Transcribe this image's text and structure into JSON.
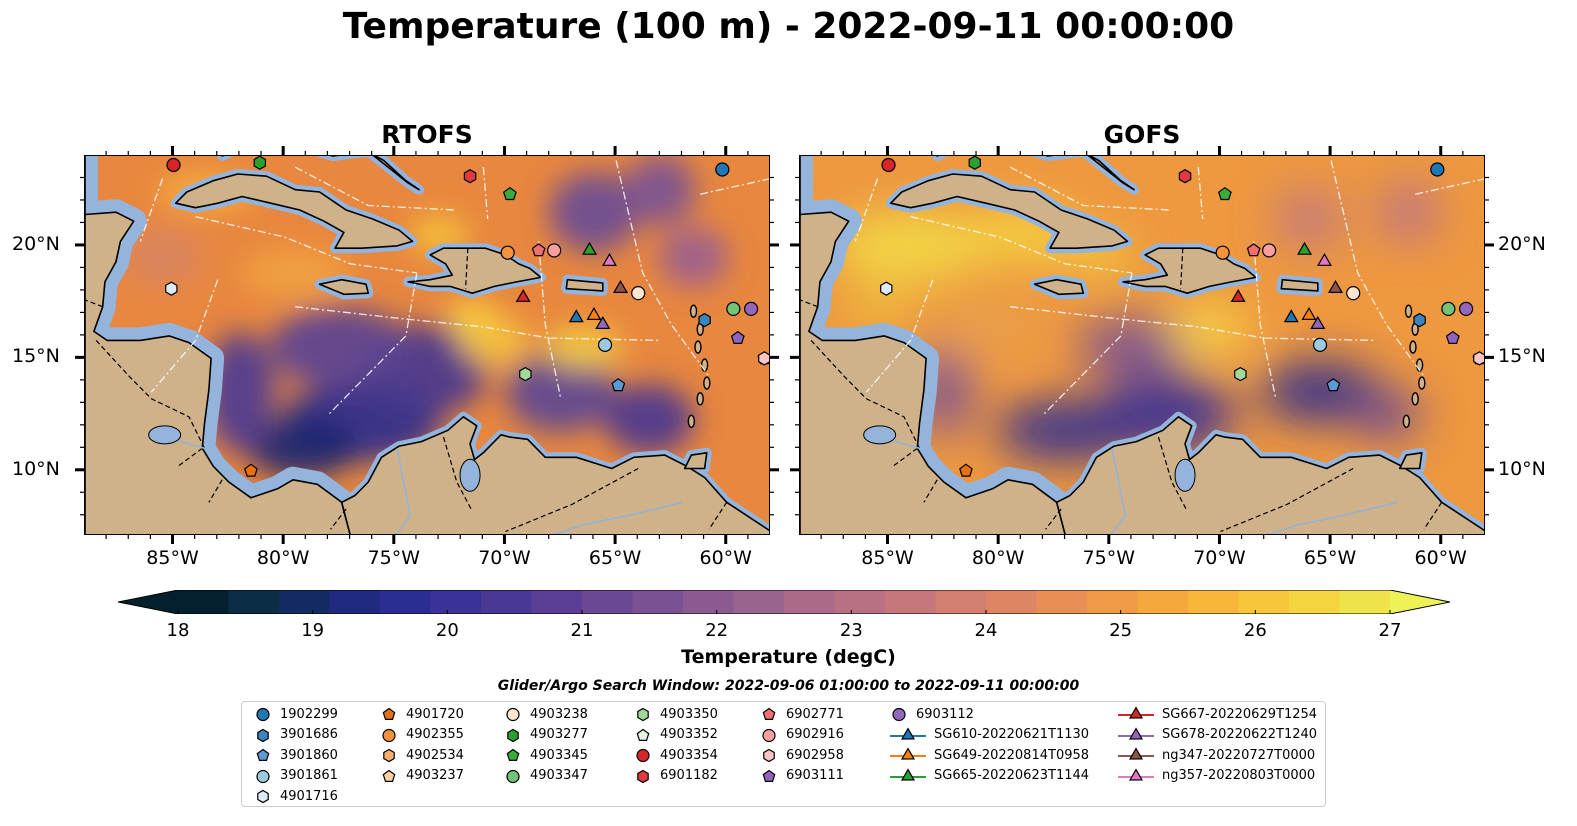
{
  "title": "Temperature (100 m) - 2022-09-11 00:00:00",
  "panels": [
    {
      "title": "RTOFS",
      "style": "rtofs"
    },
    {
      "title": "GOFS",
      "style": "gofs"
    }
  ],
  "axes": {
    "lon_ticks": [
      "85°W",
      "80°W",
      "75°W",
      "70°W",
      "65°W",
      "60°W"
    ],
    "lat_ticks": [
      "20°N",
      "15°N",
      "10°N"
    ]
  },
  "colorbar": {
    "label": "Temperature (degC)",
    "ticks": [
      "18",
      "19",
      "20",
      "21",
      "22",
      "23",
      "24",
      "25",
      "26",
      "27"
    ],
    "range": [
      18,
      27
    ],
    "colors": [
      "#04202e",
      "#0b2d45",
      "#142a62",
      "#1f2a80",
      "#2c2d93",
      "#3a3297",
      "#4a3896",
      "#5a3f95",
      "#6a4894",
      "#7a5192",
      "#8a5a91",
      "#9a628e",
      "#aa6a88",
      "#b87082",
      "#c6777b",
      "#d27e70",
      "#de8664",
      "#e88f55",
      "#f09a48",
      "#f5a83d",
      "#f7b738",
      "#f7c63a",
      "#f4d53f",
      "#eee44a"
    ],
    "extend": "both"
  },
  "search_window": "Glider/Argo Search Window: 2022-09-06 01:00:00 to 2022-09-11 00:00:00",
  "legend": {
    "columns": [
      [
        {
          "label": "1902299",
          "marker": "circle",
          "color": "#1f77b4"
        },
        {
          "label": "3901686",
          "marker": "hexagon",
          "color": "#3a85c0"
        },
        {
          "label": "3901860",
          "marker": "pentagon",
          "color": "#5b9bd5"
        },
        {
          "label": "3901861",
          "marker": "circle",
          "color": "#9ecae1"
        },
        {
          "label": "4901716",
          "marker": "hexagon",
          "color": "#deebf7"
        }
      ],
      [
        {
          "label": "4901720",
          "marker": "pentagon",
          "color": "#e6720f"
        },
        {
          "label": "4902355",
          "marker": "circle",
          "color": "#f4923e"
        },
        {
          "label": "4902534",
          "marker": "hexagon",
          "color": "#fdae6b"
        },
        {
          "label": "4903237",
          "marker": "pentagon",
          "color": "#fdd0a2"
        }
      ],
      [
        {
          "label": "4903238",
          "marker": "circle",
          "color": "#fee6ce"
        },
        {
          "label": "4903277",
          "marker": "hexagon",
          "color": "#2ca02c"
        },
        {
          "label": "4903345",
          "marker": "pentagon",
          "color": "#38ad38"
        },
        {
          "label": "4903347",
          "marker": "circle",
          "color": "#74c476"
        }
      ],
      [
        {
          "label": "4903350",
          "marker": "hexagon",
          "color": "#a1d99b"
        },
        {
          "label": "4903352",
          "marker": "pentagon",
          "color": "#e5f5e0"
        },
        {
          "label": "4903354",
          "marker": "circle",
          "color": "#d62728"
        },
        {
          "label": "6901182",
          "marker": "hexagon",
          "color": "#e03a3e"
        }
      ],
      [
        {
          "label": "6902771",
          "marker": "pentagon",
          "color": "#f16e73"
        },
        {
          "label": "6902916",
          "marker": "circle",
          "color": "#fa9fa0"
        },
        {
          "label": "6902958",
          "marker": "hexagon",
          "color": "#fcc5c6"
        },
        {
          "label": "6903111",
          "marker": "pentagon",
          "color": "#8f63c0"
        }
      ],
      [
        {
          "label": "6903112",
          "marker": "circle",
          "color": "#9467bd"
        },
        {
          "label": "SG610-20220621T1130",
          "marker": "triangle",
          "color": "#1f77b4",
          "line": true
        },
        {
          "label": "SG649-20220814T0958",
          "marker": "triangle",
          "color": "#ff7f0e",
          "line": true
        },
        {
          "label": "SG665-20220623T1144",
          "marker": "triangle",
          "color": "#2ca02c",
          "line": true
        }
      ],
      [
        {
          "label": "SG667-20220629T1254",
          "marker": "triangle",
          "color": "#d62728",
          "line": true
        },
        {
          "label": "SG678-20220622T1240",
          "marker": "triangle",
          "color": "#9467bd",
          "line": true
        },
        {
          "label": "ng347-20220727T0000",
          "marker": "triangle",
          "color": "#8c564b",
          "line": true
        },
        {
          "label": "ng357-20220803T0000",
          "marker": "triangle",
          "color": "#e377c2",
          "line": true
        }
      ]
    ]
  },
  "platforms": [
    {
      "label": "1902299",
      "lon": -60.2,
      "lat": 23.4
    },
    {
      "label": "3901686",
      "lon": -61.0,
      "lat": 16.7
    },
    {
      "label": "3901860",
      "lon": -64.9,
      "lat": 13.8
    },
    {
      "label": "3901861",
      "lon": -65.5,
      "lat": 15.6
    },
    {
      "label": "4901716",
      "lon": -85.1,
      "lat": 18.1
    },
    {
      "label": "4901720",
      "lon": -81.5,
      "lat": 10.0
    },
    {
      "label": "4902355",
      "lon": -69.9,
      "lat": 19.7
    },
    {
      "label": "4902534",
      "lon": -64.0,
      "lat": 17.9
    },
    {
      "label": "4903238",
      "lon": -64.0,
      "lat": 17.9
    },
    {
      "label": "4903277",
      "lon": -81.1,
      "lat": 23.7
    },
    {
      "label": "4903345",
      "lon": -69.8,
      "lat": 22.3
    },
    {
      "label": "4903347",
      "lon": -59.7,
      "lat": 17.2
    },
    {
      "label": "4903350",
      "lon": -69.1,
      "lat": 14.3
    },
    {
      "label": "4903352",
      "lon": -58.3,
      "lat": 15.0
    },
    {
      "label": "4903354",
      "lon": -85.0,
      "lat": 23.6
    },
    {
      "label": "6901182",
      "lon": -71.6,
      "lat": 23.1
    },
    {
      "label": "6902771",
      "lon": -68.5,
      "lat": 19.8
    },
    {
      "label": "6902916",
      "lon": -67.8,
      "lat": 19.8
    },
    {
      "label": "6902958",
      "lon": -58.3,
      "lat": 15.0
    },
    {
      "label": "6903111",
      "lon": -59.5,
      "lat": 15.9
    },
    {
      "label": "6903112",
      "lon": -58.9,
      "lat": 17.2
    },
    {
      "label": "SG610-20220621T1130",
      "lon": -66.8,
      "lat": 16.8
    },
    {
      "label": "SG649-20220814T0958",
      "lon": -66.0,
      "lat": 16.9
    },
    {
      "label": "SG665-20220623T1144",
      "lon": -66.2,
      "lat": 19.8
    },
    {
      "label": "SG667-20220629T1254",
      "lon": -69.2,
      "lat": 17.7
    },
    {
      "label": "SG678-20220622T1240",
      "lon": -65.6,
      "lat": 16.5
    },
    {
      "label": "ng347-20220727T0000",
      "lon": -64.8,
      "lat": 18.1
    },
    {
      "label": "ng357-20220803T0000",
      "lon": -65.3,
      "lat": 19.3
    }
  ],
  "colors": {
    "land": "#cfb28a",
    "shelf": "#95b4dc",
    "deep_land": "#062232",
    "marker_edge": "#000000"
  }
}
